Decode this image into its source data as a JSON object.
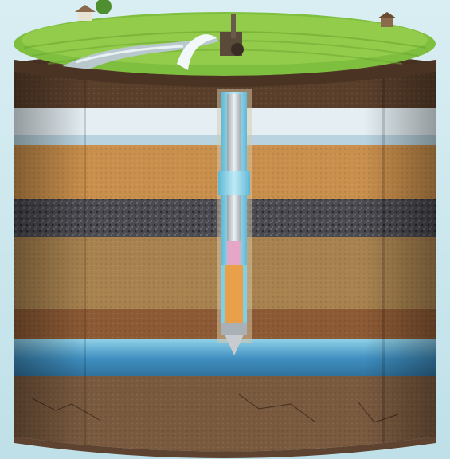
{
  "image": {
    "subject": "cutaway-soil-layers-with-borehole-well",
    "layers": [
      {
        "id": "topsoil",
        "color": "#5a3f2b"
      },
      {
        "id": "clay-white",
        "color": "#dfeaf0"
      },
      {
        "id": "sand-orange",
        "color": "#c98f4c"
      },
      {
        "id": "gravel-dark",
        "color": "#4a4a50"
      },
      {
        "id": "sand-tan",
        "color": "#a8824f"
      },
      {
        "id": "clay-brown",
        "color": "#8c5a34"
      },
      {
        "id": "aquifer-water",
        "color": "#4aa3c9"
      },
      {
        "id": "bedrock",
        "color": "#7a5a3f"
      }
    ],
    "colors": {
      "background": "#cfe6ec",
      "grass": "#7fbf3f",
      "pipe-casing": "#7fd0e6",
      "pipe-inner": "#d8dde2",
      "screen-pink": "#e6a6c8",
      "screen-orange": "#e8a14a"
    }
  }
}
